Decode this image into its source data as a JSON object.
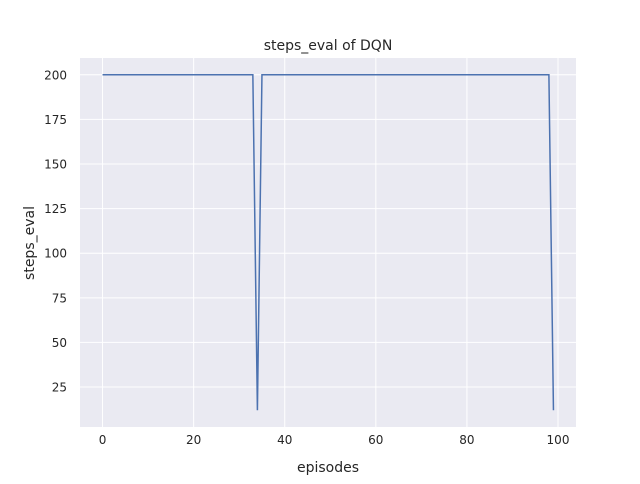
{
  "chart_data": {
    "type": "line",
    "title": "steps_eval of DQN",
    "xlabel": "episodes",
    "ylabel": "steps_eval",
    "xlim": [
      -4.95,
      103.95
    ],
    "ylim": [
      2.6,
      209.4
    ],
    "xticks": [
      0,
      20,
      40,
      60,
      80,
      100
    ],
    "yticks": [
      25,
      50,
      75,
      100,
      125,
      150,
      175,
      200
    ],
    "grid": true,
    "line_color": "#4c72b0",
    "background_color": "#eaeaf2",
    "x": [
      0,
      1,
      2,
      3,
      4,
      5,
      6,
      7,
      8,
      9,
      10,
      11,
      12,
      13,
      14,
      15,
      16,
      17,
      18,
      19,
      20,
      21,
      22,
      23,
      24,
      25,
      26,
      27,
      28,
      29,
      30,
      31,
      32,
      33,
      34,
      35,
      36,
      37,
      38,
      39,
      40,
      41,
      42,
      43,
      44,
      45,
      46,
      47,
      48,
      49,
      50,
      51,
      52,
      53,
      54,
      55,
      56,
      57,
      58,
      59,
      60,
      61,
      62,
      63,
      64,
      65,
      66,
      67,
      68,
      69,
      70,
      71,
      72,
      73,
      74,
      75,
      76,
      77,
      78,
      79,
      80,
      81,
      82,
      83,
      84,
      85,
      86,
      87,
      88,
      89,
      90,
      91,
      92,
      93,
      94,
      95,
      96,
      97,
      98,
      99
    ],
    "y": [
      200,
      200,
      200,
      200,
      200,
      200,
      200,
      200,
      200,
      200,
      200,
      200,
      200,
      200,
      200,
      200,
      200,
      200,
      200,
      200,
      200,
      200,
      200,
      200,
      200,
      200,
      200,
      200,
      200,
      200,
      200,
      200,
      200,
      200,
      12,
      200,
      200,
      200,
      200,
      200,
      200,
      200,
      200,
      200,
      200,
      200,
      200,
      200,
      200,
      200,
      200,
      200,
      200,
      200,
      200,
      200,
      200,
      200,
      200,
      200,
      200,
      200,
      200,
      200,
      200,
      200,
      200,
      200,
      200,
      200,
      200,
      200,
      200,
      200,
      200,
      200,
      200,
      200,
      200,
      200,
      200,
      200,
      200,
      200,
      200,
      200,
      200,
      200,
      200,
      200,
      200,
      200,
      200,
      200,
      200,
      200,
      200,
      200,
      200,
      12
    ]
  }
}
